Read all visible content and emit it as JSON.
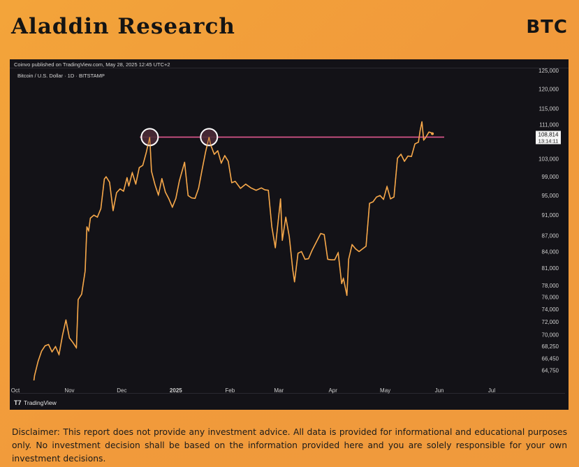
{
  "header": {
    "brand": "Aladdin Research",
    "ticker": "BTC"
  },
  "chart_meta": {
    "published": "Coinvo published on TradingView.com, May 28, 2025 12:45 UTC+2",
    "symbol": "Bitcoin / U.S. Dollar · 1D · BITSTAMP",
    "watermark": "TradingView",
    "price_label": "108,814",
    "countdown": "13:14:11"
  },
  "chart_data": {
    "type": "line",
    "title": "Bitcoin / U.S. Dollar · 1D · BITSTAMP",
    "y_ticks": [
      "125,000",
      "120,000",
      "115,000",
      "111,000",
      "107,000",
      "103,000",
      "99,000",
      "95,000",
      "91,000",
      "87,000",
      "84,000",
      "81,000",
      "78,000",
      "76,000",
      "74,000",
      "72,000",
      "70,000",
      "68,250",
      "66,450",
      "64,750"
    ],
    "x_ticks": [
      "Oct",
      "Nov",
      "Dec",
      "2025",
      "Feb",
      "Mar",
      "Apr",
      "May",
      "Jun",
      "Jul"
    ],
    "ylim": [
      63500,
      125000
    ],
    "scale": "log",
    "grid": false,
    "colors": {
      "line": "#f5a74a",
      "resistance": "#e0588f",
      "circle_fill": "#4a2a36",
      "circle_stroke": "#ffffff"
    },
    "resistance_level": 108000,
    "highlighted_peaks": [
      "2024-12-17",
      "2025-01-20"
    ],
    "last_price": 108814,
    "series": [
      {
        "points": [
          [
            "2024-10-10",
            60500
          ],
          [
            "2024-10-12",
            64000
          ],
          [
            "2024-10-14",
            66000
          ],
          [
            "2024-10-16",
            67500
          ],
          [
            "2024-10-18",
            68300
          ],
          [
            "2024-10-20",
            68500
          ],
          [
            "2024-10-22",
            67400
          ],
          [
            "2024-10-24",
            68200
          ],
          [
            "2024-10-26",
            67000
          ],
          [
            "2024-10-28",
            69900
          ],
          [
            "2024-10-30",
            72300
          ],
          [
            "2024-11-01",
            69500
          ],
          [
            "2024-11-03",
            68800
          ],
          [
            "2024-11-05",
            68000
          ],
          [
            "2024-11-06",
            75600
          ],
          [
            "2024-11-08",
            76500
          ],
          [
            "2024-11-10",
            80500
          ],
          [
            "2024-11-11",
            88700
          ],
          [
            "2024-11-12",
            87900
          ],
          [
            "2024-11-13",
            90400
          ],
          [
            "2024-11-15",
            91000
          ],
          [
            "2024-11-17",
            90600
          ],
          [
            "2024-11-19",
            92300
          ],
          [
            "2024-11-21",
            98500
          ],
          [
            "2024-11-22",
            99000
          ],
          [
            "2024-11-24",
            97800
          ],
          [
            "2024-11-26",
            91900
          ],
          [
            "2024-11-28",
            95600
          ],
          [
            "2024-11-30",
            96400
          ],
          [
            "2024-12-02",
            95900
          ],
          [
            "2024-12-04",
            98800
          ],
          [
            "2024-12-05",
            97000
          ],
          [
            "2024-12-07",
            99900
          ],
          [
            "2024-12-09",
            97400
          ],
          [
            "2024-12-11",
            101000
          ],
          [
            "2024-12-13",
            101500
          ],
          [
            "2024-12-15",
            104400
          ],
          [
            "2024-12-17",
            108000
          ],
          [
            "2024-12-18",
            100200
          ],
          [
            "2024-12-20",
            97300
          ],
          [
            "2024-12-22",
            95100
          ],
          [
            "2024-12-24",
            98600
          ],
          [
            "2024-12-26",
            95700
          ],
          [
            "2024-12-28",
            94300
          ],
          [
            "2024-12-30",
            92600
          ],
          [
            "2025-01-01",
            94400
          ],
          [
            "2025-01-03",
            98100
          ],
          [
            "2025-01-06",
            102200
          ],
          [
            "2025-01-08",
            95000
          ],
          [
            "2025-01-10",
            94500
          ],
          [
            "2025-01-12",
            94400
          ],
          [
            "2025-01-14",
            96500
          ],
          [
            "2025-01-16",
            100500
          ],
          [
            "2025-01-18",
            104500
          ],
          [
            "2025-01-20",
            108000
          ],
          [
            "2025-01-21",
            106100
          ],
          [
            "2025-01-23",
            104000
          ],
          [
            "2025-01-25",
            104800
          ],
          [
            "2025-01-27",
            102000
          ],
          [
            "2025-01-29",
            103700
          ],
          [
            "2025-01-31",
            102400
          ],
          [
            "2025-02-02",
            97700
          ],
          [
            "2025-02-04",
            98000
          ],
          [
            "2025-02-07",
            96500
          ],
          [
            "2025-02-10",
            97400
          ],
          [
            "2025-02-13",
            96600
          ],
          [
            "2025-02-16",
            96100
          ],
          [
            "2025-02-19",
            96600
          ],
          [
            "2025-02-21",
            96200
          ],
          [
            "2025-02-23",
            96100
          ],
          [
            "2025-02-25",
            88700
          ],
          [
            "2025-02-27",
            84700
          ],
          [
            "2025-03-02",
            94300
          ],
          [
            "2025-03-03",
            86100
          ],
          [
            "2025-03-05",
            90600
          ],
          [
            "2025-03-07",
            86800
          ],
          [
            "2025-03-09",
            80700
          ],
          [
            "2025-03-10",
            78600
          ],
          [
            "2025-03-12",
            83700
          ],
          [
            "2025-03-14",
            84000
          ],
          [
            "2025-03-16",
            82600
          ],
          [
            "2025-03-18",
            82700
          ],
          [
            "2025-03-20",
            84200
          ],
          [
            "2025-03-23",
            86100
          ],
          [
            "2025-03-25",
            87400
          ],
          [
            "2025-03-27",
            87200
          ],
          [
            "2025-03-29",
            82600
          ],
          [
            "2025-03-31",
            82500
          ],
          [
            "2025-04-02",
            82500
          ],
          [
            "2025-04-04",
            83800
          ],
          [
            "2025-04-06",
            78300
          ],
          [
            "2025-04-07",
            79200
          ],
          [
            "2025-04-09",
            76300
          ],
          [
            "2025-04-10",
            82600
          ],
          [
            "2025-04-12",
            85300
          ],
          [
            "2025-04-14",
            84500
          ],
          [
            "2025-04-16",
            84000
          ],
          [
            "2025-04-18",
            84500
          ],
          [
            "2025-04-20",
            85000
          ],
          [
            "2025-04-22",
            93400
          ],
          [
            "2025-04-24",
            93700
          ],
          [
            "2025-04-26",
            94700
          ],
          [
            "2025-04-28",
            95000
          ],
          [
            "2025-04-30",
            94200
          ],
          [
            "2025-05-02",
            96900
          ],
          [
            "2025-05-04",
            94300
          ],
          [
            "2025-05-06",
            94700
          ],
          [
            "2025-05-08",
            103100
          ],
          [
            "2025-05-10",
            104000
          ],
          [
            "2025-05-12",
            102400
          ],
          [
            "2025-05-14",
            103600
          ],
          [
            "2025-05-16",
            103500
          ],
          [
            "2025-05-18",
            106400
          ],
          [
            "2025-05-20",
            106800
          ],
          [
            "2025-05-21",
            109600
          ],
          [
            "2025-05-22",
            111700
          ],
          [
            "2025-05-23",
            107300
          ],
          [
            "2025-05-24",
            107800
          ],
          [
            "2025-05-26",
            109200
          ],
          [
            "2025-05-27",
            109100
          ],
          [
            "2025-05-28",
            108814
          ]
        ]
      }
    ]
  },
  "disclaimer": "Disclaimer: This report does not provide any investment advice. All data is provided for informational and educational purposes only. No investment decision shall be based on the information provided here and you are solely responsible for your own investment decisions."
}
